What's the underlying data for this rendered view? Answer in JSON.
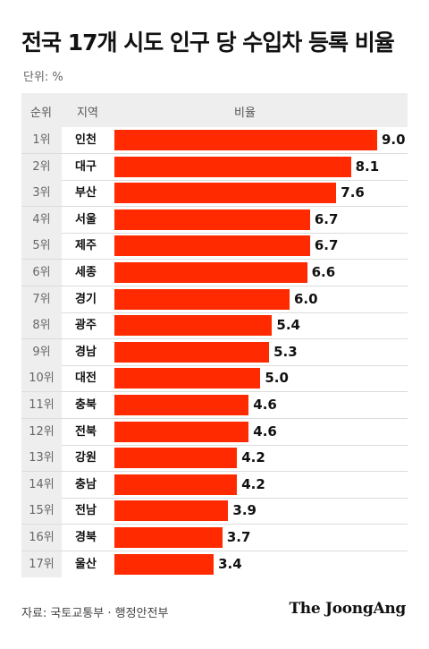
{
  "title": "전국 17개 시도 인구 당 수입차 등록 비율",
  "unit": "단위: %",
  "columns": {
    "rank": "순위",
    "region": "지역",
    "ratio": "비율"
  },
  "source": "자료: 국토교통부 · 행정안전부",
  "brand": "The JoongAng",
  "colors": {
    "bar": "#ff2a00",
    "rank_bg": "#eeeeee",
    "header_bg": "#eeeeee"
  },
  "chart_data": {
    "type": "bar",
    "orientation": "horizontal",
    "title": "전국 17개 시도 인구 당 수입차 등록 비율",
    "unit": "%",
    "ranks": [
      "1위",
      "2위",
      "3위",
      "4위",
      "5위",
      "6위",
      "7위",
      "8위",
      "9위",
      "10위",
      "11위",
      "12위",
      "13위",
      "14위",
      "15위",
      "16위",
      "17위"
    ],
    "categories": [
      "인천",
      "대구",
      "부산",
      "서울",
      "제주",
      "세종",
      "경기",
      "광주",
      "경남",
      "대전",
      "충북",
      "전북",
      "강원",
      "충남",
      "전남",
      "경북",
      "울산"
    ],
    "values": [
      9.0,
      8.1,
      7.6,
      6.7,
      6.7,
      6.6,
      6.0,
      5.4,
      5.3,
      5.0,
      4.6,
      4.6,
      4.2,
      4.2,
      3.9,
      3.7,
      3.4
    ],
    "value_labels": [
      "9.0",
      "8.1",
      "7.6",
      "6.7",
      "6.7",
      "6.6",
      "6.0",
      "5.4",
      "5.3",
      "5.0",
      "4.6",
      "4.6",
      "4.2",
      "4.2",
      "3.9",
      "3.7",
      "3.4"
    ],
    "xlim": [
      0,
      9.0
    ]
  }
}
